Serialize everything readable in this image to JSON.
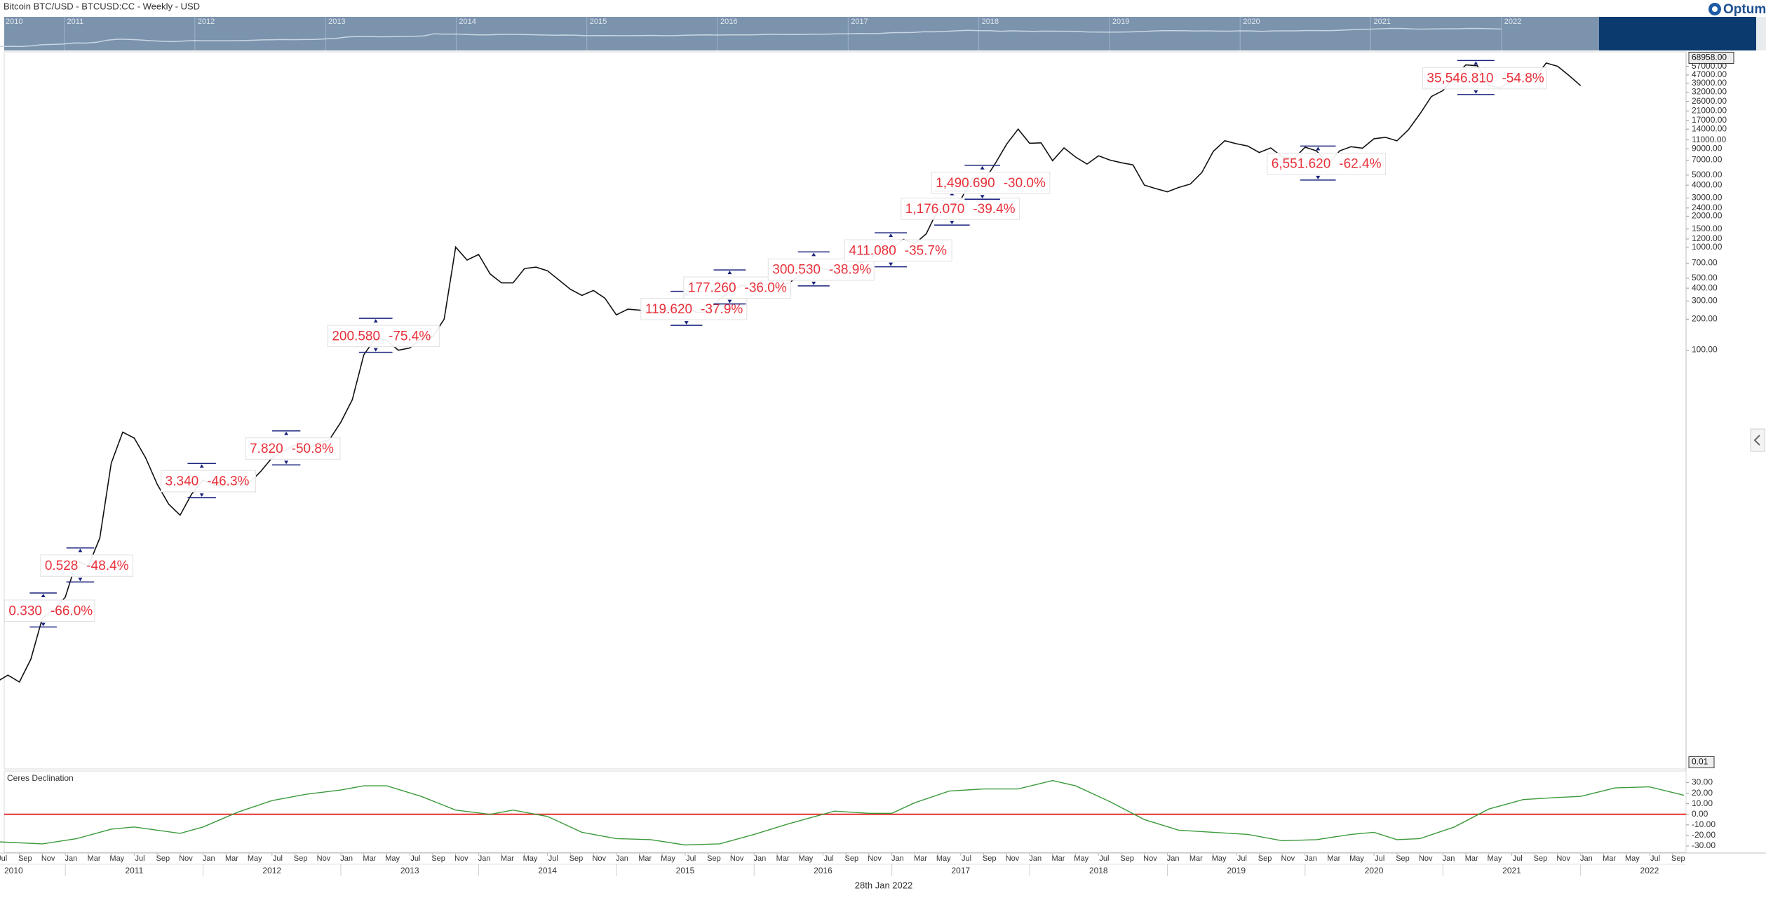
{
  "header": {
    "title": "Bitcoin BTC/USD - BTCUSD:CC - Weekly - USD",
    "logo": "Optuma"
  },
  "navigator": {
    "years": [
      "2010",
      "2011",
      "2012",
      "2013",
      "2014",
      "2015",
      "2016",
      "2017",
      "2018",
      "2019",
      "2020",
      "2021",
      "2022"
    ]
  },
  "x_axis": {
    "months": [
      "Jul",
      "Sep",
      "Nov",
      "Jan",
      "Mar",
      "May",
      "Jul",
      "Sep",
      "Nov",
      "Jan",
      "Mar",
      "May",
      "Jul",
      "Sep",
      "Nov",
      "Jan",
      "Mar",
      "May",
      "Jul",
      "Sep",
      "Nov",
      "Jan",
      "Mar",
      "May",
      "Jul",
      "Sep",
      "Nov",
      "Jan",
      "Mar",
      "May",
      "Jul",
      "Sep",
      "Nov",
      "Jan",
      "Mar",
      "May",
      "Jul",
      "Sep",
      "Nov",
      "Jan",
      "Mar",
      "May",
      "Jul",
      "Sep",
      "Nov",
      "Jan",
      "Mar",
      "May",
      "Jul",
      "Sep",
      "Nov",
      "Jan",
      "Mar",
      "May",
      "Jul",
      "Sep",
      "Nov",
      "Jan",
      "Mar",
      "May",
      "Jul",
      "Sep",
      "Nov",
      "Jan",
      "Mar",
      "May",
      "Jul",
      "Sep",
      "Nov",
      "Jan",
      "Mar",
      "May",
      "Jul",
      "Sep"
    ],
    "years": [
      "2010",
      "2011",
      "2012",
      "2013",
      "2014",
      "2015",
      "2016",
      "2017",
      "2018",
      "2019",
      "2020",
      "2021",
      "2022"
    ]
  },
  "footer": {
    "date": "28th Jan 2022"
  },
  "chart_data": [
    {
      "type": "line",
      "log_scale": true,
      "color": "#111111",
      "x": [
        "2010-07",
        "2010-08",
        "2010-09",
        "2010-10",
        "2010-11",
        "2010-12",
        "2011-01",
        "2011-02",
        "2011-03",
        "2011-04",
        "2011-05",
        "2011-06",
        "2011-07",
        "2011-08",
        "2011-09",
        "2011-10",
        "2011-11",
        "2011-12",
        "2012-01",
        "2012-02",
        "2012-03",
        "2012-04",
        "2012-05",
        "2012-06",
        "2012-07",
        "2012-08",
        "2012-09",
        "2012-10",
        "2012-11",
        "2012-12",
        "2013-01",
        "2013-02",
        "2013-03",
        "2013-04",
        "2013-05",
        "2013-06",
        "2013-07",
        "2013-08",
        "2013-09",
        "2013-10",
        "2013-11",
        "2013-12",
        "2014-01",
        "2014-02",
        "2014-03",
        "2014-04",
        "2014-05",
        "2014-06",
        "2014-07",
        "2014-08",
        "2014-09",
        "2014-10",
        "2014-11",
        "2014-12",
        "2015-01",
        "2015-02",
        "2015-03",
        "2015-04",
        "2015-05",
        "2015-06",
        "2015-07",
        "2015-08",
        "2015-09",
        "2015-10",
        "2015-11",
        "2015-12",
        "2016-01",
        "2016-02",
        "2016-03",
        "2016-04",
        "2016-05",
        "2016-06",
        "2016-07",
        "2016-08",
        "2016-09",
        "2016-10",
        "2016-11",
        "2016-12",
        "2017-01",
        "2017-02",
        "2017-03",
        "2017-04",
        "2017-05",
        "2017-06",
        "2017-07",
        "2017-08",
        "2017-09",
        "2017-10",
        "2017-11",
        "2017-12",
        "2018-01",
        "2018-02",
        "2018-03",
        "2018-04",
        "2018-05",
        "2018-06",
        "2018-07",
        "2018-08",
        "2018-09",
        "2018-10",
        "2018-11",
        "2018-12",
        "2019-01",
        "2019-02",
        "2019-03",
        "2019-04",
        "2019-05",
        "2019-06",
        "2019-07",
        "2019-08",
        "2019-09",
        "2019-10",
        "2019-11",
        "2019-12",
        "2020-01",
        "2020-02",
        "2020-03",
        "2020-04",
        "2020-05",
        "2020-06",
        "2020-07",
        "2020-08",
        "2020-09",
        "2020-10",
        "2020-11",
        "2020-12",
        "2021-01",
        "2021-02",
        "2021-03",
        "2021-04",
        "2021-05",
        "2021-06",
        "2021-07",
        "2021-08",
        "2021-09",
        "2021-10",
        "2021-11",
        "2021-12",
        "2022-01"
      ],
      "values": [
        0.06,
        0.07,
        0.06,
        0.1,
        0.25,
        0.3,
        0.4,
        0.9,
        0.8,
        1.5,
        8,
        16,
        14,
        9,
        5,
        3.2,
        2.5,
        4,
        5.5,
        4.9,
        4.9,
        5,
        5.1,
        6.6,
        9,
        10.5,
        12,
        11,
        12.5,
        13.5,
        20,
        33,
        90,
        130,
        125,
        100,
        105,
        130,
        135,
        200,
        1000,
        750,
        850,
        550,
        450,
        450,
        620,
        640,
        590,
        480,
        390,
        340,
        380,
        320,
        220,
        250,
        245,
        236,
        230,
        260,
        285,
        230,
        236,
        313,
        377,
        430,
        370,
        437,
        416,
        448,
        530,
        670,
        624,
        575,
        609,
        700,
        740,
        960,
        970,
        1190,
        1080,
        1350,
        2300,
        2500,
        2880,
        4700,
        4340,
        6470,
        10000,
        14000,
        10200,
        10300,
        6900,
        9200,
        7500,
        6400,
        7700,
        7000,
        6600,
        6300,
        4000,
        3700,
        3450,
        3800,
        4100,
        5300,
        8500,
        10800,
        10100,
        9600,
        8300,
        9200,
        7550,
        7200,
        9350,
        8600,
        6400,
        8600,
        9450,
        9140,
        11300,
        11650,
        10780,
        13800,
        19700,
        29000,
        33100,
        45200,
        58800,
        57700,
        37300,
        35000,
        41500,
        47100,
        43800,
        61300,
        57000,
        46300,
        37000
      ],
      "ylim": [
        0.0086,
        78700
      ],
      "yticks": [
        {
          "value": 57000,
          "label": "57000.00"
        },
        {
          "value": 47000,
          "label": "47000.00"
        },
        {
          "value": 39000,
          "label": "39000.00"
        },
        {
          "value": 32000,
          "label": "32000.00"
        },
        {
          "value": 26000,
          "label": "26000.00"
        },
        {
          "value": 21000,
          "label": "21000.00"
        },
        {
          "value": 17000,
          "label": "17000.00"
        },
        {
          "value": 14000,
          "label": "14000.00"
        },
        {
          "value": 11000,
          "label": "11000.00"
        },
        {
          "value": 9000,
          "label": "9000.00"
        },
        {
          "value": 7000,
          "label": "7000.00"
        },
        {
          "value": 5000,
          "label": "5000.00"
        },
        {
          "value": 4000,
          "label": "4000.00"
        },
        {
          "value": 3000,
          "label": "3000.00"
        },
        {
          "value": 2400,
          "label": "2400.00"
        },
        {
          "value": 2000,
          "label": "2000.00"
        },
        {
          "value": 1500,
          "label": "1500.00"
        },
        {
          "value": 1200,
          "label": "1200.00"
        },
        {
          "value": 1000,
          "label": "1000.00"
        },
        {
          "value": 700,
          "label": "700.00"
        },
        {
          "value": 500,
          "label": "500.00"
        },
        {
          "value": 400,
          "label": "400.00"
        },
        {
          "value": 300,
          "label": "300.00"
        },
        {
          "value": 200,
          "label": "200.00"
        },
        {
          "value": 100,
          "label": "100.00"
        }
      ],
      "axis_markers": [
        {
          "value": 68958,
          "label": "68958.00"
        },
        {
          "value": 0.01,
          "label": "0.01"
        }
      ],
      "annotations": [
        {
          "amount": "0.330",
          "change": "-66.0%"
        },
        {
          "amount": "0.528",
          "change": "-48.4%"
        },
        {
          "amount": "3.340",
          "change": "-46.3%"
        },
        {
          "amount": "7.820",
          "change": "-50.8%"
        },
        {
          "amount": "200.580",
          "change": "-75.4%"
        },
        {
          "amount": "119.620",
          "change": "-37.9%"
        },
        {
          "amount": "177.260",
          "change": "-36.0%"
        },
        {
          "amount": "300.530",
          "change": "-38.9%"
        },
        {
          "amount": "411.080",
          "change": "-35.7%"
        },
        {
          "amount": "1,176.070",
          "change": "-39.4%"
        },
        {
          "amount": "1,490.690",
          "change": "-30.0%"
        },
        {
          "amount": "6,551.620",
          "change": "-62.4%"
        },
        {
          "amount": "35,546.810",
          "change": "-54.8%"
        }
      ]
    },
    {
      "type": "line",
      "title": "Ceres Declination",
      "color": "#3c9a3c",
      "x": [
        "2010-07",
        "2010-11",
        "2011-02",
        "2011-05",
        "2011-07",
        "2011-09",
        "2011-11",
        "2012-01",
        "2012-04",
        "2012-07",
        "2012-10",
        "2013-01",
        "2013-03",
        "2013-05",
        "2013-08",
        "2013-11",
        "2014-02",
        "2014-04",
        "2014-07",
        "2014-10",
        "2015-01",
        "2015-04",
        "2015-07",
        "2015-10",
        "2016-01",
        "2016-04",
        "2016-08",
        "2016-11",
        "2017-01",
        "2017-03",
        "2017-06",
        "2017-09",
        "2017-12",
        "2018-03",
        "2018-05",
        "2018-08",
        "2018-11",
        "2019-02",
        "2019-05",
        "2019-08",
        "2019-11",
        "2020-02",
        "2020-05",
        "2020-07",
        "2020-09",
        "2020-11",
        "2021-02",
        "2021-05",
        "2021-08",
        "2021-11",
        "2022-01",
        "2022-04",
        "2022-07",
        "2022-10"
      ],
      "values": [
        -26,
        -28,
        -23,
        -14,
        -12,
        -15,
        -18,
        -12,
        2,
        13,
        19,
        23,
        27,
        27,
        17,
        4,
        0,
        4,
        -2,
        -17,
        -23,
        -24,
        -29,
        -28,
        -19,
        -9,
        3,
        1,
        1,
        11,
        22,
        24,
        24,
        32,
        27,
        12,
        -5,
        -15,
        -17,
        -19,
        -25,
        -24,
        -19,
        -17,
        -24,
        -23,
        -12,
        5,
        14,
        16,
        17,
        25,
        26,
        18
      ],
      "ylim": [
        -36,
        41
      ],
      "yticks": [
        {
          "value": 30,
          "label": "30.00"
        },
        {
          "value": 20,
          "label": "20.00"
        },
        {
          "value": 10,
          "label": "10.00"
        },
        {
          "value": 0,
          "label": "0.00"
        },
        {
          "value": -10,
          "label": "-10.00"
        },
        {
          "value": -20,
          "label": "-20.00"
        },
        {
          "value": -30,
          "label": "-30.00"
        }
      ],
      "reference_line": {
        "value": 0,
        "color": "#e53030"
      }
    }
  ]
}
